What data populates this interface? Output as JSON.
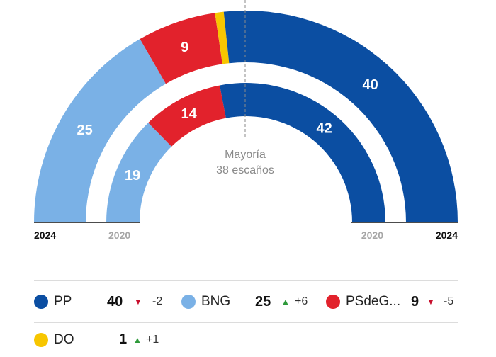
{
  "chart_data": {
    "type": "parliament-semicircle",
    "total_seats": 75,
    "majority_line": [
      "Mayoría",
      "38 escaños"
    ],
    "rings": [
      {
        "year": "2024",
        "seats": [
          {
            "party": "BNG",
            "value": 25,
            "color": "#7ab1e6"
          },
          {
            "party": "PSdeG",
            "value": 9,
            "color": "#e2222c"
          },
          {
            "party": "DO",
            "value": 1,
            "color": "#f7c600"
          },
          {
            "party": "PP",
            "value": 40,
            "color": "#0b4ea2"
          }
        ]
      },
      {
        "year": "2020",
        "seats": [
          {
            "party": "BNG",
            "value": 19,
            "color": "#7ab1e6"
          },
          {
            "party": "PSdeG",
            "value": 14,
            "color": "#e2222c"
          },
          {
            "party": "PP",
            "value": 42,
            "color": "#0b4ea2"
          }
        ]
      }
    ]
  },
  "legend": [
    {
      "name": "PP",
      "seats": "40",
      "direction": "down",
      "change": "-2",
      "color": "#0b4ea2"
    },
    {
      "name": "BNG",
      "seats": "25",
      "direction": "up",
      "change": "+6",
      "color": "#7ab1e6"
    },
    {
      "name": "PSdeG...",
      "seats": "9",
      "direction": "down",
      "change": "-5",
      "color": "#e2222c"
    },
    {
      "name": "DO",
      "seats": "1",
      "direction": "up",
      "change": "+1",
      "color": "#f7c600"
    }
  ],
  "arrows": {
    "up": "▲",
    "down": "▼"
  }
}
